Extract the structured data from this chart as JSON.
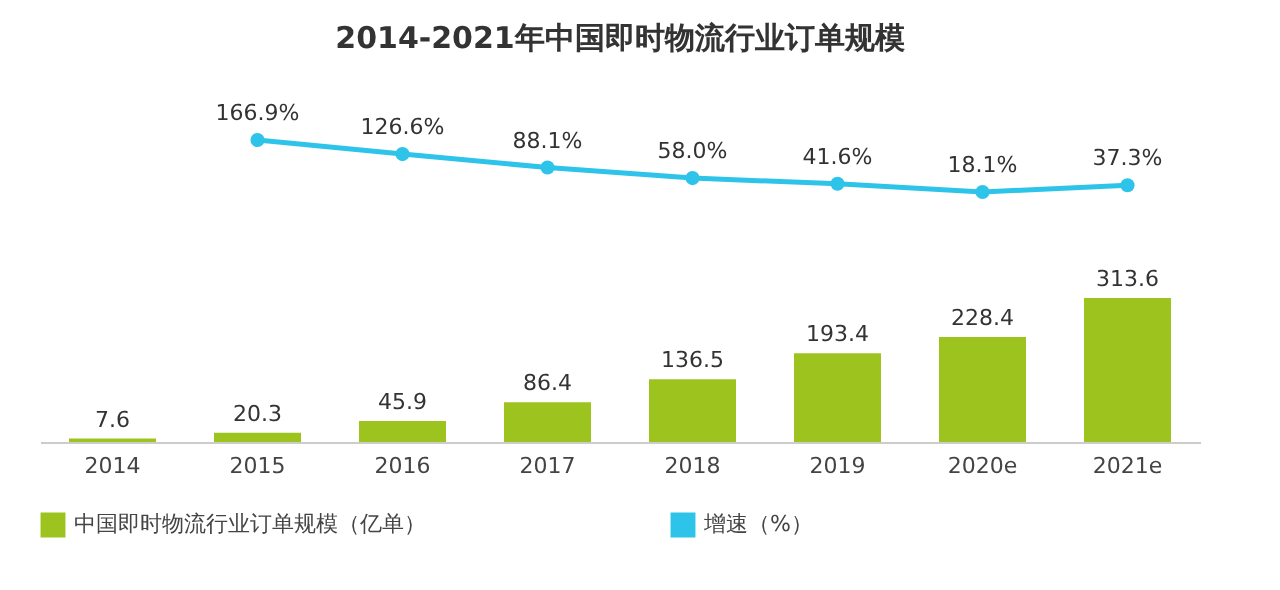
{
  "chart_data": [
    {
      "type": "line",
      "title": "2014-2021年中国即时物流行业订单规模",
      "tick_labels": false,
      "marker": "circle",
      "legend": "bottom",
      "series": [
        {
          "name": "增速（%）",
          "color": "#2ec4ea",
          "values": [
            null,
            166.9,
            126.6,
            88.1,
            58.0,
            41.6,
            18.1,
            37.3
          ],
          "value_labels": [
            null,
            "166.9%",
            "126.6%",
            "88.1%",
            "58.0%",
            "41.6%",
            "18.1%",
            "37.3%"
          ]
        }
      ]
    },
    {
      "type": "bar",
      "categories": [
        "2014",
        "2015",
        "2016",
        "2017",
        "2018",
        "2019",
        "2020e",
        "2021e"
      ],
      "data_labels": true,
      "legend": "bottom",
      "series": [
        {
          "name": "中国即时物流行业订单规模（亿单）",
          "color": "#9dc41e",
          "values": [
            7.6,
            20.3,
            45.9,
            86.4,
            136.5,
            193.4,
            228.4,
            313.6
          ]
        }
      ]
    }
  ]
}
